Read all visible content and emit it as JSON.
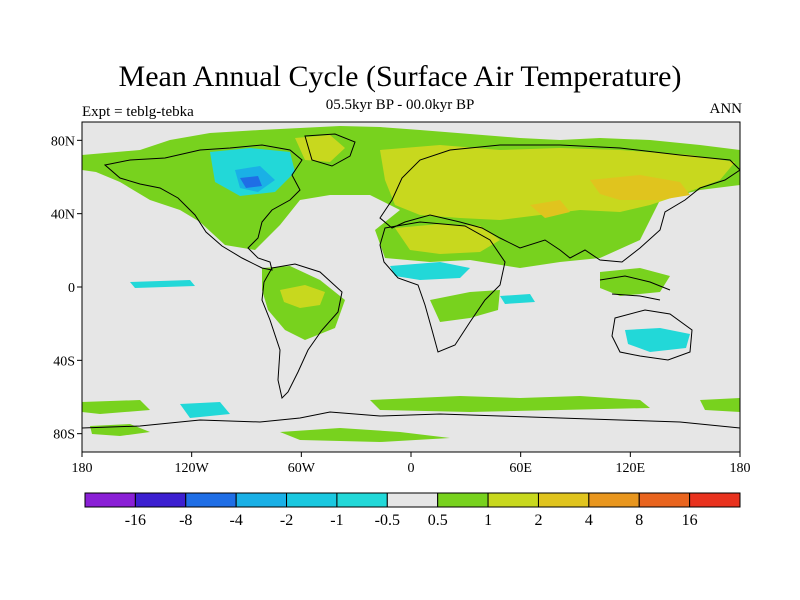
{
  "title": "Mean Annual Cycle (Surface Air Temperature)",
  "subtitle": "05.5kyr BP - 00.0kyr BP",
  "left_label": "Expt = teblg-tebka",
  "right_label": "ANN",
  "map": {
    "lon_range": [
      -180,
      180
    ],
    "lat_range": [
      -90,
      90
    ],
    "background_color": "#e6e6e6",
    "x_ticks": [
      {
        "value": -180,
        "label": "180"
      },
      {
        "value": -120,
        "label": "120W"
      },
      {
        "value": -60,
        "label": "60W"
      },
      {
        "value": 0,
        "label": "0"
      },
      {
        "value": 60,
        "label": "60E"
      },
      {
        "value": 120,
        "label": "120E"
      },
      {
        "value": 180,
        "label": "180"
      }
    ],
    "y_ticks": [
      {
        "value": 80,
        "label": "80N"
      },
      {
        "value": 40,
        "label": "40N"
      },
      {
        "value": 0,
        "label": "0"
      },
      {
        "value": -40,
        "label": "40S"
      },
      {
        "value": -80,
        "label": "80S"
      }
    ]
  },
  "colorbar": {
    "colors": [
      "#8a1fd6",
      "#3c1fd0",
      "#1f6ee6",
      "#1ab0e6",
      "#1ac8e0",
      "#22d8d8",
      "#e6e6e6",
      "#78d21e",
      "#c8d81e",
      "#e0c41e",
      "#e8961e",
      "#e8641e",
      "#e8321e"
    ],
    "labels": [
      "-16",
      "-8",
      "-4",
      "-2",
      "-1",
      "-0.5",
      "0.5",
      "1",
      "2",
      "4",
      "8",
      "16"
    ]
  }
}
